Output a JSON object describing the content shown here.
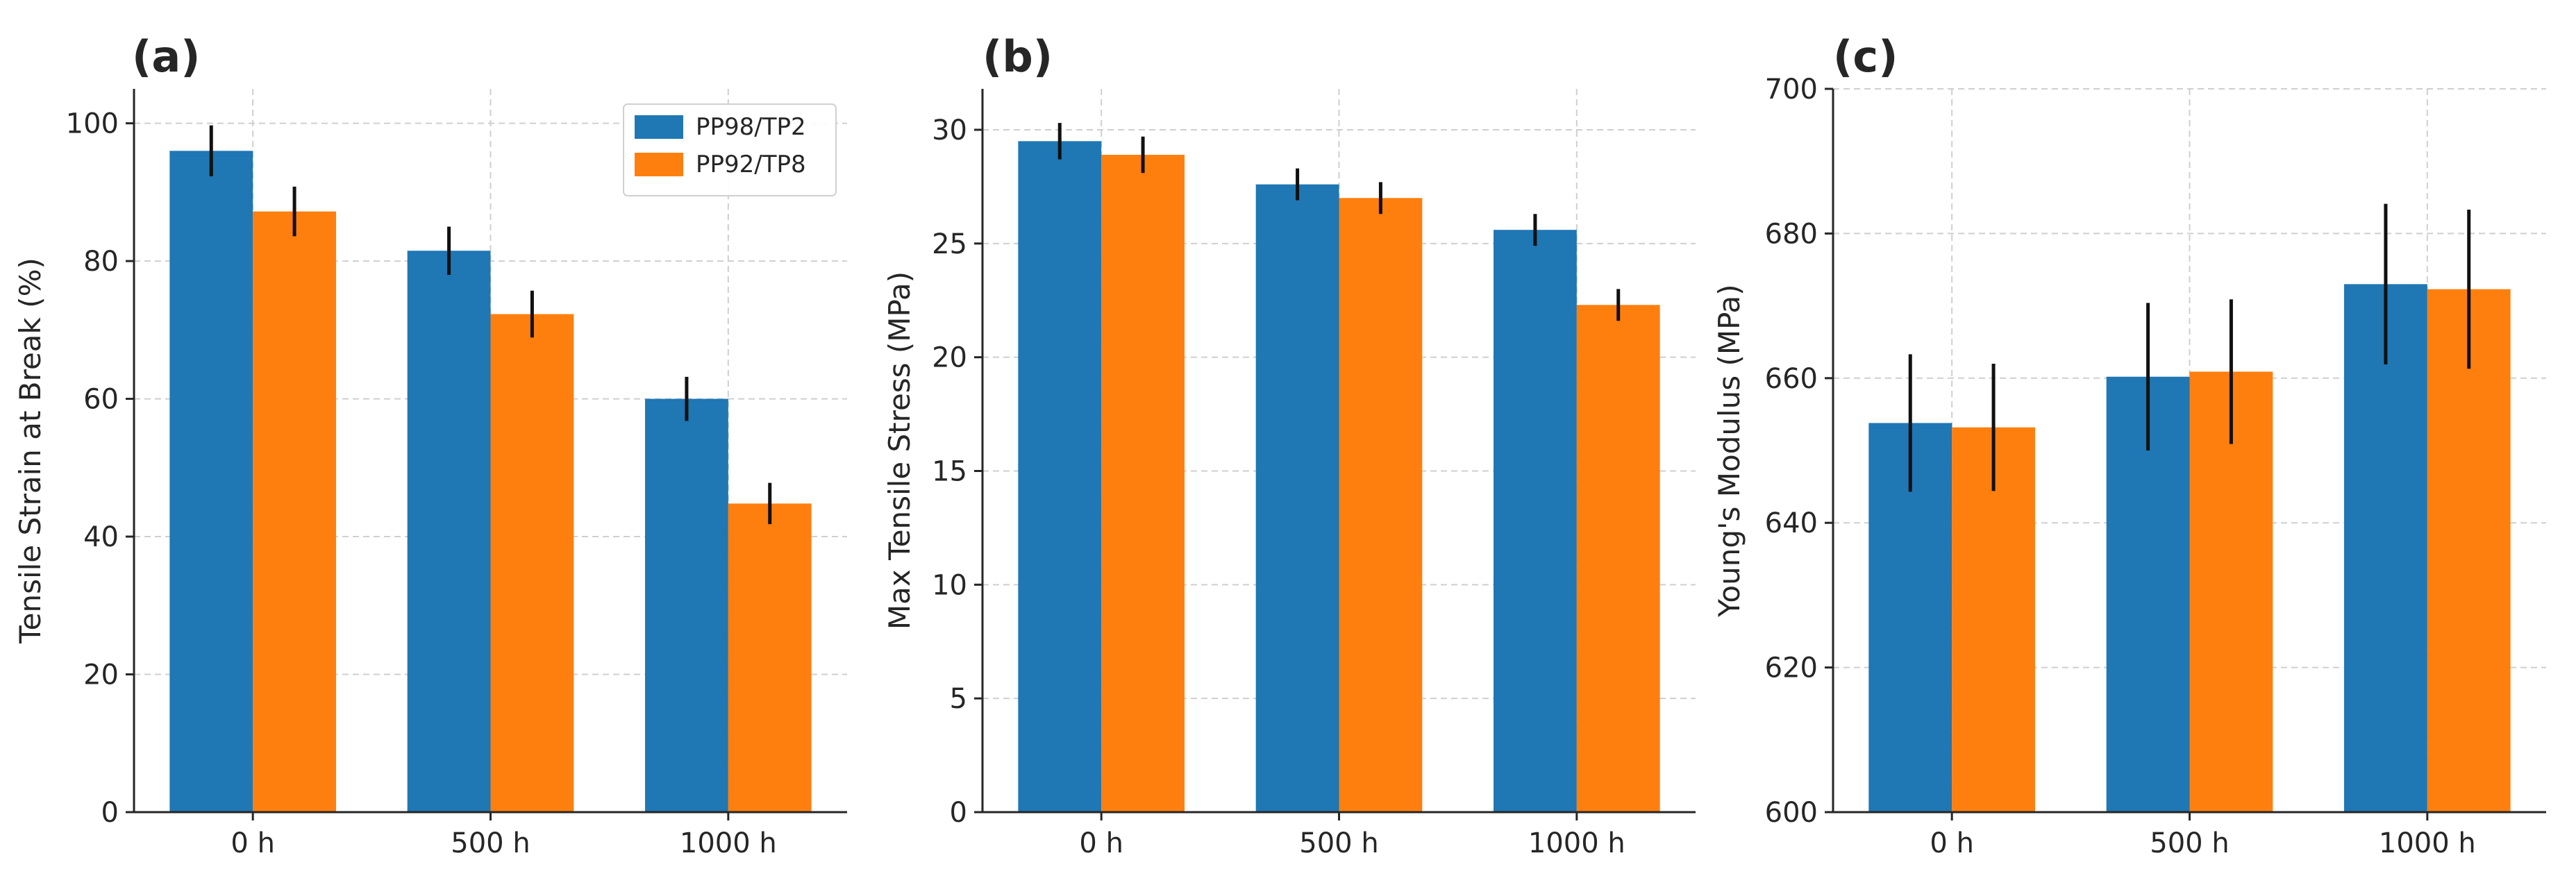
{
  "colors": {
    "series1": "#1f77b4",
    "series2": "#ff7f0e"
  },
  "legend": {
    "entries": [
      "PP98/TP2",
      "PP92/TP8"
    ],
    "placement": "top-right of panel (a)"
  },
  "chart_data": [
    {
      "type": "bar",
      "panel": "(a)",
      "title": "",
      "xlabel": "",
      "ylabel": "Tensile Strain at Break (%)",
      "categories": [
        "0 h",
        "500 h",
        "1000 h"
      ],
      "ylim": [
        0,
        105
      ],
      "yticks": [
        0,
        20,
        40,
        60,
        80,
        100
      ],
      "grid": true,
      "series": [
        {
          "name": "PP98/TP2",
          "values": [
            96,
            81.5,
            60
          ],
          "errors": [
            3.7,
            3.5,
            3.2
          ]
        },
        {
          "name": "PP92/TP8",
          "values": [
            87.2,
            72.3,
            44.8
          ],
          "errors": [
            3.6,
            3.4,
            3.0
          ]
        }
      ]
    },
    {
      "type": "bar",
      "panel": "(b)",
      "title": "",
      "xlabel": "",
      "ylabel": "Max Tensile Stress (MPa)",
      "categories": [
        "0 h",
        "500 h",
        "1000 h"
      ],
      "ylim": [
        0,
        31.8
      ],
      "yticks": [
        0,
        5,
        10,
        15,
        20,
        25,
        30
      ],
      "grid": true,
      "series": [
        {
          "name": "PP98/TP2",
          "values": [
            29.5,
            27.6,
            25.6
          ],
          "errors": [
            0.8,
            0.7,
            0.7
          ]
        },
        {
          "name": "PP92/TP8",
          "values": [
            28.9,
            27.0,
            22.3
          ],
          "errors": [
            0.8,
            0.7,
            0.7
          ]
        }
      ]
    },
    {
      "type": "bar",
      "panel": "(c)",
      "title": "",
      "xlabel": "",
      "ylabel": "Young's Modulus (MPa)",
      "categories": [
        "0 h",
        "500 h",
        "1000 h"
      ],
      "ylim": [
        600,
        700
      ],
      "yticks": [
        600,
        620,
        640,
        660,
        680,
        700
      ],
      "grid": true,
      "series": [
        {
          "name": "PP98/TP2",
          "values": [
            653.8,
            660.2,
            673
          ],
          "errors": [
            9.5,
            10.2,
            11.1
          ]
        },
        {
          "name": "PP92/TP8",
          "values": [
            653.2,
            660.9,
            672.3
          ],
          "errors": [
            8.8,
            10,
            11
          ]
        }
      ]
    }
  ]
}
